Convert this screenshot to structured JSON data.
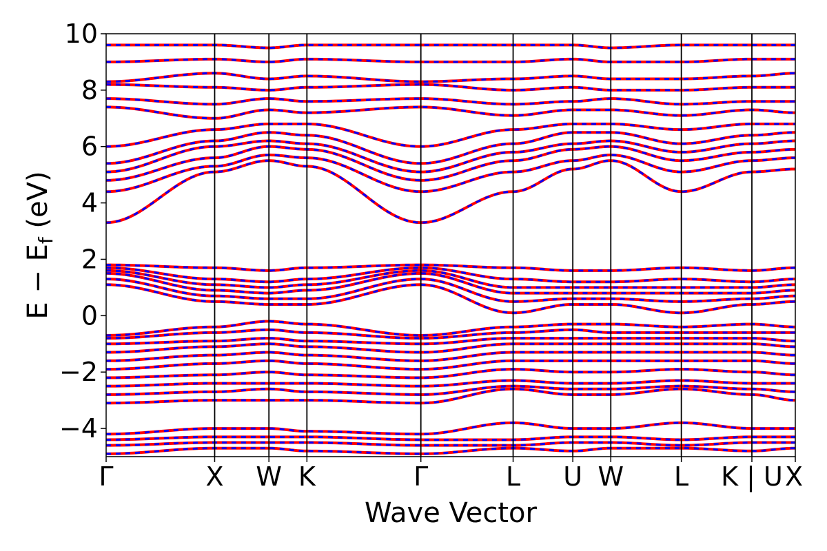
{
  "chart_data": {
    "type": "line",
    "title": "",
    "xlabel": "Wave Vector",
    "ylabel": "E − E",
    "ylabel_subscript": "f",
    "ylabel_unit": " (eV)",
    "ylim": [
      -5,
      10
    ],
    "yticks": [
      10,
      8,
      6,
      4,
      2,
      0,
      -2,
      -4
    ],
    "ytick_labels": [
      "10",
      "8",
      "6",
      "4",
      "2",
      "0",
      "−2",
      "−4"
    ],
    "grid": false,
    "legend": "none",
    "kpath_x": [
      0,
      1.0,
      1.5,
      1.85,
      2.9,
      3.75,
      4.3,
      4.65,
      5.3,
      5.95,
      6.35
    ],
    "kpath_labels": [
      "Γ",
      "X",
      "W",
      "K",
      "Γ",
      "L",
      "U",
      "W",
      "L",
      "K | U",
      "X"
    ],
    "colors": {
      "series_a": "#ff0000",
      "series_b": "#0000ff",
      "vlines": "#000000"
    },
    "series": [
      {
        "name": "",
        "color": "#ff0000",
        "style": "solid"
      },
      {
        "name": "",
        "color": "#0000ff",
        "style": "dashed"
      }
    ],
    "band_energies_at_kpoints": [
      [
        -4.9,
        -4.7,
        -4.7,
        -4.8,
        -4.9,
        -4.7,
        -4.8,
        -4.7,
        -4.7,
        -4.8,
        -4.7
      ],
      [
        -4.6,
        -4.5,
        -4.5,
        -4.5,
        -4.6,
        -4.6,
        -4.5,
        -4.5,
        -4.6,
        -4.5,
        -4.5
      ],
      [
        -4.4,
        -4.3,
        -4.3,
        -4.3,
        -4.4,
        -4.4,
        -4.3,
        -4.3,
        -4.4,
        -4.3,
        -4.3
      ],
      [
        -4.2,
        -4.0,
        -4.0,
        -4.1,
        -4.2,
        -3.8,
        -4.0,
        -4.0,
        -3.8,
        -4.0,
        -4.0
      ],
      [
        -3.1,
        -3.0,
        -3.0,
        -3.0,
        -3.1,
        -2.6,
        -2.8,
        -2.8,
        -2.6,
        -2.8,
        -3.0
      ],
      [
        -2.8,
        -2.7,
        -2.6,
        -2.7,
        -2.8,
        -2.5,
        -2.6,
        -2.6,
        -2.5,
        -2.6,
        -2.7
      ],
      [
        -2.5,
        -2.4,
        -2.4,
        -2.4,
        -2.5,
        -2.3,
        -2.4,
        -2.4,
        -2.3,
        -2.4,
        -2.4
      ],
      [
        -2.2,
        -2.1,
        -2.0,
        -2.1,
        -2.2,
        -1.9,
        -2.0,
        -2.0,
        -1.9,
        -2.0,
        -2.1
      ],
      [
        -1.9,
        -1.7,
        -1.6,
        -1.7,
        -1.9,
        -1.6,
        -1.6,
        -1.6,
        -1.6,
        -1.6,
        -1.7
      ],
      [
        -1.6,
        -1.4,
        -1.3,
        -1.4,
        -1.6,
        -1.3,
        -1.3,
        -1.3,
        -1.3,
        -1.3,
        -1.4
      ],
      [
        -1.3,
        -1.1,
        -1.0,
        -1.1,
        -1.3,
        -1.0,
        -1.0,
        -1.0,
        -1.0,
        -1.0,
        -1.1
      ],
      [
        -1.0,
        -0.9,
        -0.8,
        -0.9,
        -1.0,
        -0.8,
        -0.8,
        -0.8,
        -0.8,
        -0.8,
        -0.9
      ],
      [
        -0.8,
        -0.6,
        -0.5,
        -0.6,
        -0.8,
        -0.6,
        -0.5,
        -0.6,
        -0.6,
        -0.6,
        -0.6
      ],
      [
        -0.7,
        -0.4,
        -0.2,
        -0.3,
        -0.7,
        -0.4,
        -0.3,
        -0.3,
        -0.4,
        -0.3,
        -0.4
      ],
      [
        1.1,
        0.5,
        0.4,
        0.4,
        1.1,
        0.1,
        0.4,
        0.4,
        0.1,
        0.4,
        0.5
      ],
      [
        1.3,
        0.7,
        0.6,
        0.6,
        1.3,
        0.5,
        0.6,
        0.6,
        0.5,
        0.6,
        0.7
      ],
      [
        1.5,
        0.9,
        0.8,
        0.9,
        1.5,
        0.8,
        0.8,
        0.8,
        0.8,
        0.8,
        0.9
      ],
      [
        1.6,
        1.1,
        1.0,
        1.1,
        1.6,
        1.0,
        1.0,
        1.0,
        1.0,
        1.0,
        1.1
      ],
      [
        1.7,
        1.3,
        1.2,
        1.3,
        1.7,
        1.3,
        1.2,
        1.2,
        1.3,
        1.2,
        1.3
      ],
      [
        1.8,
        1.7,
        1.6,
        1.7,
        1.8,
        1.7,
        1.6,
        1.6,
        1.7,
        1.6,
        1.7
      ],
      [
        3.3,
        5.1,
        5.5,
        5.3,
        3.3,
        4.4,
        5.2,
        5.5,
        4.4,
        5.1,
        5.2
      ],
      [
        4.4,
        5.3,
        5.7,
        5.6,
        4.4,
        5.1,
        5.5,
        5.7,
        5.1,
        5.5,
        5.6
      ],
      [
        4.8,
        5.6,
        6.0,
        5.9,
        4.8,
        5.5,
        5.9,
        6.0,
        5.5,
        5.8,
        5.9
      ],
      [
        5.1,
        6.0,
        6.2,
        6.1,
        5.1,
        5.8,
        6.1,
        6.2,
        5.8,
        6.1,
        6.2
      ],
      [
        5.4,
        6.2,
        6.5,
        6.4,
        5.4,
        6.1,
        6.5,
        6.5,
        6.1,
        6.4,
        6.5
      ],
      [
        6.0,
        6.6,
        6.8,
        6.8,
        6.0,
        6.6,
        6.8,
        6.8,
        6.6,
        6.8,
        6.8
      ],
      [
        7.4,
        7.0,
        7.3,
        7.2,
        7.4,
        7.1,
        7.3,
        7.3,
        7.1,
        7.3,
        7.2
      ],
      [
        7.7,
        7.5,
        7.7,
        7.6,
        7.7,
        7.5,
        7.6,
        7.7,
        7.5,
        7.6,
        7.6
      ],
      [
        8.2,
        8.1,
        8.0,
        8.1,
        8.2,
        8.0,
        8.1,
        8.0,
        8.0,
        8.1,
        8.1
      ],
      [
        8.3,
        8.6,
        8.4,
        8.5,
        8.3,
        8.4,
        8.5,
        8.4,
        8.4,
        8.5,
        8.6
      ],
      [
        9.0,
        9.1,
        9.0,
        9.1,
        9.0,
        9.0,
        9.1,
        9.0,
        9.0,
        9.1,
        9.1
      ],
      [
        9.6,
        9.6,
        9.5,
        9.6,
        9.6,
        9.6,
        9.6,
        9.5,
        9.6,
        9.6,
        9.6
      ]
    ]
  }
}
